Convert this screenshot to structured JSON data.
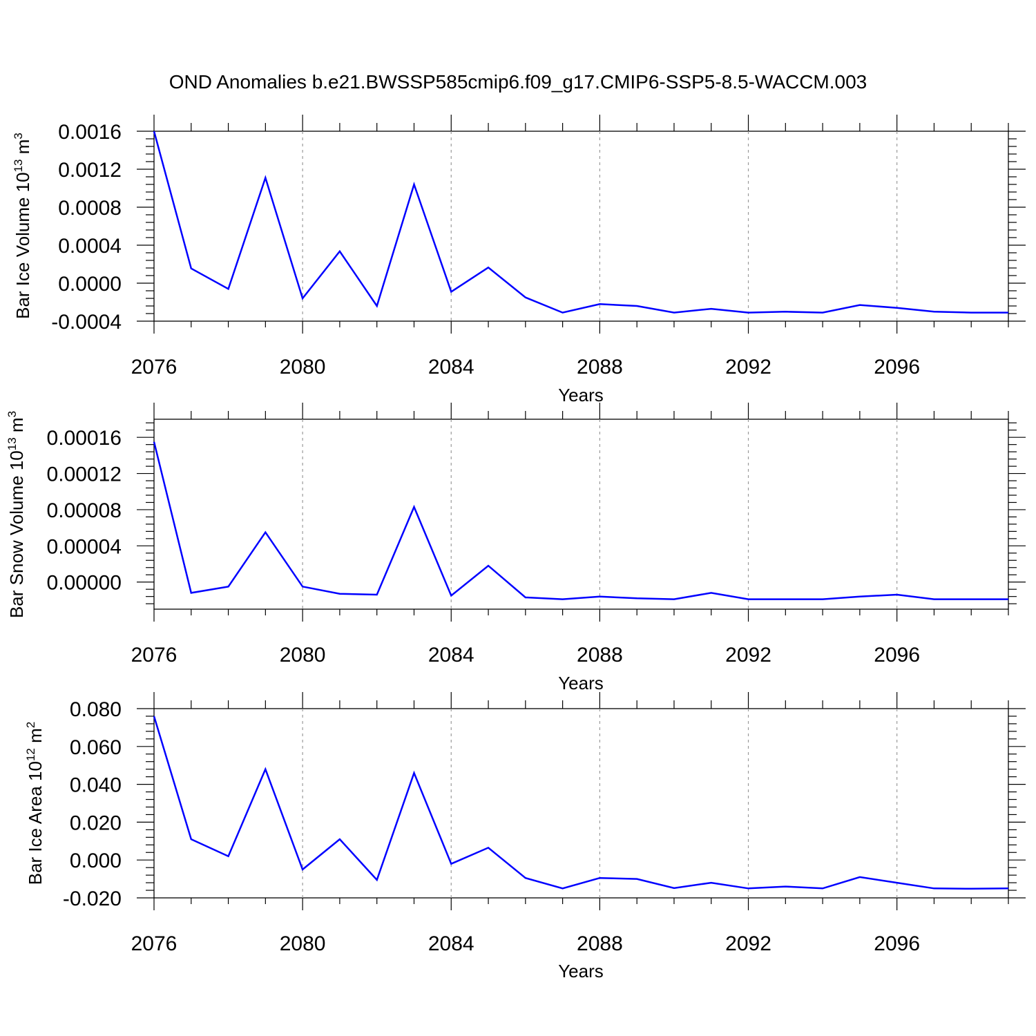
{
  "chart_data": [
    {
      "type": "line",
      "title": "OND Anomalies b.e21.BWSSP585cmip6.f09_g17.CMIP6-SSP5-8.5-WACCM.003",
      "xlabel": "Years",
      "ylabel": "Bar Ice Volume 10",
      "ylabel_exp": "13",
      "ylabel_unit": " m",
      "ylabel_unit_exp": "3",
      "x": [
        2076,
        2077,
        2078,
        2079,
        2080,
        2081,
        2082,
        2083,
        2084,
        2085,
        2086,
        2087,
        2088,
        2089,
        2090,
        2091,
        2092,
        2093,
        2094,
        2095,
        2096,
        2097,
        2098,
        2099
      ],
      "xlim": [
        2076,
        2099
      ],
      "xticks": [
        "2076",
        "2080",
        "2084",
        "2088",
        "2092",
        "2096"
      ],
      "yticks": [
        "0.0016",
        "0.0012",
        "0.0008",
        "0.0004",
        "0.0000",
        "-0.0004"
      ],
      "ylim": [
        -0.0004,
        0.0016
      ],
      "series": [
        {
          "name": "Bar Ice Volume",
          "color": "#0000ff",
          "values": [
            0.0016,
            0.000155,
            -6e-05,
            0.00111,
            -0.00016,
            0.000335,
            -0.00024,
            0.00104,
            -9e-05,
            0.000165,
            -0.00015,
            -0.00031,
            -0.00022,
            -0.00024,
            -0.00031,
            -0.00027,
            -0.00031,
            -0.0003,
            -0.00031,
            -0.00023,
            -0.00026,
            -0.0003,
            -0.00031,
            -0.00031
          ]
        }
      ],
      "grid": "dashed vertical at labeled years"
    },
    {
      "type": "line",
      "xlabel": "Years",
      "ylabel": "Bar Snow Volume 10",
      "ylabel_exp": "13",
      "ylabel_unit": " m",
      "ylabel_unit_exp": "3",
      "x": [
        2076,
        2077,
        2078,
        2079,
        2080,
        2081,
        2082,
        2083,
        2084,
        2085,
        2086,
        2087,
        2088,
        2089,
        2090,
        2091,
        2092,
        2093,
        2094,
        2095,
        2096,
        2097,
        2098,
        2099
      ],
      "xlim": [
        2076,
        2099
      ],
      "xticks": [
        "2076",
        "2080",
        "2084",
        "2088",
        "2092",
        "2096"
      ],
      "yticks": [
        "0.00016",
        "0.00012",
        "0.00008",
        "0.00004",
        "0.00000"
      ],
      "ylim": [
        -3e-05,
        0.00018
      ],
      "series": [
        {
          "name": "Bar Snow Volume",
          "color": "#0000ff",
          "values": [
            0.000155,
            -1.2e-05,
            -5e-06,
            5.5e-05,
            -5e-06,
            -1.3e-05,
            -1.4e-05,
            8.3e-05,
            -1.5e-05,
            1.8e-05,
            -1.7e-05,
            -1.9e-05,
            -1.6e-05,
            -1.8e-05,
            -1.9e-05,
            -1.2e-05,
            -1.9e-05,
            -1.9e-05,
            -1.9e-05,
            -1.6e-05,
            -1.4e-05,
            -1.9e-05,
            -1.9e-05,
            -1.9e-05
          ]
        }
      ],
      "grid": "dashed vertical at labeled years"
    },
    {
      "type": "line",
      "xlabel": "Years",
      "ylabel": "Bar Ice Area 10",
      "ylabel_exp": "12",
      "ylabel_unit": " m",
      "ylabel_unit_exp": "2",
      "x": [
        2076,
        2077,
        2078,
        2079,
        2080,
        2081,
        2082,
        2083,
        2084,
        2085,
        2086,
        2087,
        2088,
        2089,
        2090,
        2091,
        2092,
        2093,
        2094,
        2095,
        2096,
        2097,
        2098,
        2099
      ],
      "xlim": [
        2076,
        2099
      ],
      "xticks": [
        "2076",
        "2080",
        "2084",
        "2088",
        "2092",
        "2096"
      ],
      "yticks": [
        "0.080",
        "0.060",
        "0.040",
        "0.020",
        "0.000",
        "-0.020"
      ],
      "ylim": [
        -0.02,
        0.08
      ],
      "series": [
        {
          "name": "Bar Ice Area",
          "color": "#0000ff",
          "values": [
            0.076,
            0.011,
            0.002,
            0.048,
            -0.005,
            0.011,
            -0.0105,
            0.046,
            -0.002,
            0.0065,
            -0.0095,
            -0.015,
            -0.0095,
            -0.01,
            -0.0148,
            -0.012,
            -0.015,
            -0.014,
            -0.015,
            -0.009,
            -0.012,
            -0.015,
            -0.0152,
            -0.015
          ]
        }
      ],
      "grid": "dashed vertical at labeled years"
    }
  ]
}
